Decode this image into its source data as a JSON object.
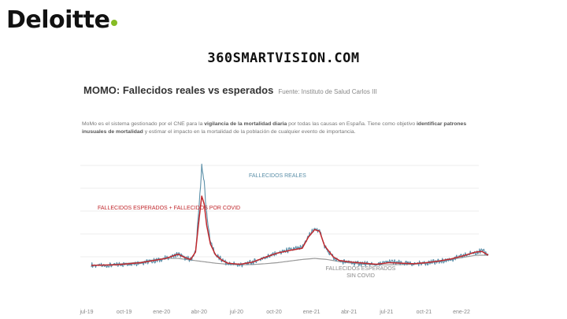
{
  "header": {
    "logo_text": "Deloitte",
    "logo_dot_color": "#86bc25",
    "site_title": "360SMARTVISION.COM"
  },
  "chart": {
    "title": "MOMO: Fallecidos reales vs esperados",
    "source": "Fuente: Instituto de Salud Carlos III",
    "description": {
      "p1": "MoMo es el sistema gestionado por el CNE para la ",
      "b1": "vigilancia de la mortalidad diaria",
      "p2": " por todas las causas en España. Tiene como objetivo ",
      "b2": "identificar patrones inusuales de mortalidad",
      "p3": " y estimar el impacto en la mortalidad de la población de cualquier evento de importancia."
    }
  },
  "chart_data": {
    "type": "line",
    "title": "MOMO: Fallecidos reales vs esperados",
    "x_label": "",
    "y_label": "",
    "x_unit": "month",
    "x_range": [
      "2019-07",
      "2022-03"
    ],
    "x_ticks": [
      "jul-19",
      "oct-19",
      "ene-20",
      "abr-20",
      "jul-20",
      "oct-20",
      "ene-21",
      "abr-21",
      "jul-21",
      "oct-21",
      "ene-22"
    ],
    "y_gridlines": 5,
    "y_tick_labels_visible": false,
    "grid": true,
    "note": "Daily values; months as fractional months since jul-19",
    "series": [
      {
        "name": "FALLECIDOS REALES",
        "color": "#5b8fa8",
        "points": [
          [
            0.0,
            1050
          ],
          [
            1.0,
            1040
          ],
          [
            2.0,
            1060
          ],
          [
            3.0,
            1080
          ],
          [
            4.0,
            1100
          ],
          [
            5.0,
            1130
          ],
          [
            6.0,
            1180
          ],
          [
            7.0,
            1260
          ],
          [
            7.5,
            1200
          ],
          [
            8.0,
            1150
          ],
          [
            8.4,
            1300
          ],
          [
            8.7,
            2200
          ],
          [
            8.9,
            2900
          ],
          [
            9.1,
            2600
          ],
          [
            9.3,
            2000
          ],
          [
            9.6,
            1500
          ],
          [
            10.0,
            1250
          ],
          [
            10.5,
            1150
          ],
          [
            11.0,
            1080
          ],
          [
            12.0,
            1060
          ],
          [
            13.0,
            1110
          ],
          [
            14.0,
            1200
          ],
          [
            15.0,
            1280
          ],
          [
            16.0,
            1340
          ],
          [
            17.0,
            1380
          ],
          [
            17.5,
            1600
          ],
          [
            18.0,
            1740
          ],
          [
            18.4,
            1700
          ],
          [
            18.8,
            1400
          ],
          [
            19.5,
            1200
          ],
          [
            20.0,
            1130
          ],
          [
            21.0,
            1100
          ],
          [
            22.0,
            1080
          ],
          [
            23.0,
            1060
          ],
          [
            24.0,
            1120
          ],
          [
            25.0,
            1090
          ],
          [
            26.0,
            1080
          ],
          [
            27.0,
            1100
          ],
          [
            28.0,
            1120
          ],
          [
            29.0,
            1160
          ],
          [
            30.0,
            1230
          ],
          [
            31.0,
            1300
          ],
          [
            31.5,
            1320
          ],
          [
            32.0,
            1250
          ]
        ]
      },
      {
        "name": "FALLECIDOS ESPERADOS + FALLECIDOS POR COVID",
        "color": "#c0282d",
        "points": [
          [
            0.0,
            1050
          ],
          [
            2.0,
            1060
          ],
          [
            4.0,
            1100
          ],
          [
            6.0,
            1180
          ],
          [
            7.0,
            1260
          ],
          [
            7.5,
            1200
          ],
          [
            8.0,
            1160
          ],
          [
            8.4,
            1300
          ],
          [
            8.7,
            1950
          ],
          [
            8.9,
            2350
          ],
          [
            9.1,
            2200
          ],
          [
            9.3,
            1800
          ],
          [
            9.6,
            1450
          ],
          [
            10.0,
            1250
          ],
          [
            10.5,
            1150
          ],
          [
            11.0,
            1090
          ],
          [
            12.0,
            1070
          ],
          [
            13.0,
            1110
          ],
          [
            14.0,
            1200
          ],
          [
            15.0,
            1280
          ],
          [
            16.0,
            1330
          ],
          [
            17.0,
            1370
          ],
          [
            17.5,
            1580
          ],
          [
            18.0,
            1720
          ],
          [
            18.4,
            1690
          ],
          [
            18.8,
            1420
          ],
          [
            19.5,
            1210
          ],
          [
            20.0,
            1140
          ],
          [
            21.0,
            1110
          ],
          [
            22.0,
            1090
          ],
          [
            23.0,
            1070
          ],
          [
            24.0,
            1100
          ],
          [
            25.0,
            1090
          ],
          [
            26.0,
            1080
          ],
          [
            27.0,
            1100
          ],
          [
            28.0,
            1130
          ],
          [
            29.0,
            1170
          ],
          [
            30.0,
            1230
          ],
          [
            31.0,
            1300
          ],
          [
            31.5,
            1310
          ],
          [
            32.0,
            1240
          ]
        ]
      },
      {
        "name": "FALLECIDOS ESPERADOS SIN COVID",
        "color": "#999999",
        "points": [
          [
            0.0,
            1050
          ],
          [
            1.0,
            1055
          ],
          [
            2.0,
            1070
          ],
          [
            3.0,
            1090
          ],
          [
            4.0,
            1110
          ],
          [
            5.0,
            1150
          ],
          [
            6.0,
            1180
          ],
          [
            7.0,
            1180
          ],
          [
            8.0,
            1150
          ],
          [
            9.0,
            1120
          ],
          [
            10.0,
            1090
          ],
          [
            11.0,
            1070
          ],
          [
            12.0,
            1060
          ],
          [
            13.0,
            1065
          ],
          [
            14.0,
            1080
          ],
          [
            15.0,
            1100
          ],
          [
            16.0,
            1130
          ],
          [
            17.0,
            1160
          ],
          [
            18.0,
            1180
          ],
          [
            19.0,
            1160
          ],
          [
            20.0,
            1120
          ],
          [
            21.0,
            1090
          ],
          [
            22.0,
            1070
          ],
          [
            23.0,
            1060
          ],
          [
            24.0,
            1060
          ],
          [
            25.0,
            1065
          ],
          [
            26.0,
            1070
          ],
          [
            27.0,
            1090
          ],
          [
            28.0,
            1120
          ],
          [
            29.0,
            1160
          ],
          [
            30.0,
            1200
          ],
          [
            31.0,
            1240
          ],
          [
            32.0,
            1240
          ]
        ]
      }
    ],
    "annotations": [
      {
        "text": "FALLECIDOS REALES",
        "color": "#5b8fa8"
      },
      {
        "text": "FALLECIDOS ESPERADOS + FALLECIDOS POR COVID",
        "color": "#c0282d"
      },
      {
        "text": "FALLECIDOS ESPERADOS",
        "text2": "SIN COVID",
        "color": "#888888"
      }
    ]
  }
}
